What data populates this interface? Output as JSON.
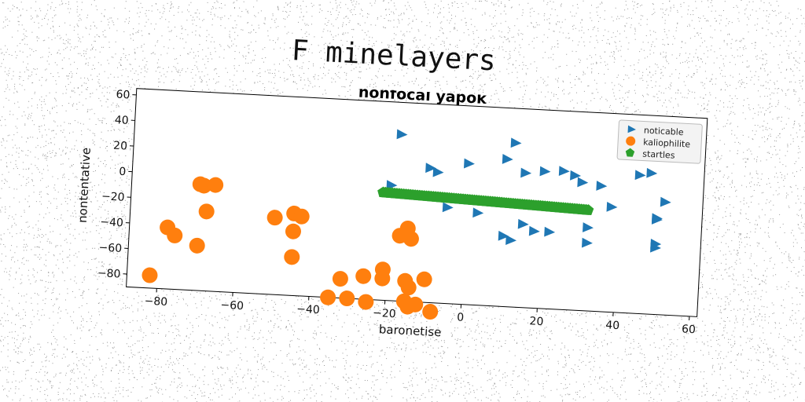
{
  "figure": {
    "suptitle": "F minelayers"
  },
  "chart_data": {
    "type": "scatter",
    "title": "nonfocal yapok",
    "xlabel": "baronetise",
    "ylabel": "nontentative",
    "xlim": [
      -88,
      62
    ],
    "ylim": [
      -90,
      65
    ],
    "xticks": [
      -80,
      -60,
      -40,
      -20,
      0,
      20,
      40,
      60
    ],
    "yticks": [
      60,
      40,
      20,
      0,
      -20,
      -40,
      -60,
      -80
    ],
    "tick_labels_x": [
      "−80",
      "−60",
      "−40",
      "−20",
      "0",
      "20",
      "40",
      "60"
    ],
    "tick_labels_y": [
      "60",
      "40",
      "20",
      "0",
      "−20",
      "−40",
      "−60",
      "−80"
    ],
    "grid": false,
    "legend": "top-right",
    "series": [
      {
        "name": "noticable",
        "marker": "triangle-right",
        "color": "#1f77b4",
        "points": [
          [
            -18,
            40
          ],
          [
            -20,
            0
          ],
          [
            -10,
            15
          ],
          [
            -8,
            12
          ],
          [
            0,
            20
          ],
          [
            -5,
            -15
          ],
          [
            3,
            -18
          ],
          [
            10,
            25
          ],
          [
            12,
            38
          ],
          [
            15,
            15
          ],
          [
            20,
            17
          ],
          [
            25,
            18
          ],
          [
            28,
            15
          ],
          [
            30,
            10
          ],
          [
            35,
            8
          ],
          [
            38,
            -8
          ],
          [
            45,
            18
          ],
          [
            50,
            -15
          ],
          [
            50,
            -16
          ],
          [
            52,
            -2
          ],
          [
            48,
            20
          ],
          [
            15,
            -25
          ],
          [
            18,
            -30
          ],
          [
            10,
            -35
          ],
          [
            12,
            -38
          ],
          [
            22,
            -30
          ],
          [
            32,
            -25
          ],
          [
            32,
            -37
          ],
          [
            50,
            -35
          ],
          [
            50,
            -38
          ]
        ]
      },
      {
        "name": "kaliophilite",
        "marker": "circle",
        "color": "#ff7f0e",
        "points": [
          [
            -82,
            -80
          ],
          [
            -78,
            -42
          ],
          [
            -76,
            -48
          ],
          [
            -70,
            -7
          ],
          [
            -69,
            -8
          ],
          [
            -66,
            -7
          ],
          [
            -68,
            -28
          ],
          [
            -70,
            -55
          ],
          [
            -50,
            -30
          ],
          [
            -45,
            -26
          ],
          [
            -43,
            -28
          ],
          [
            -45,
            -40
          ],
          [
            -45,
            -60
          ],
          [
            -32,
            -75
          ],
          [
            -35,
            -90
          ],
          [
            -30,
            -90
          ],
          [
            -26,
            -72
          ],
          [
            -25,
            -92
          ],
          [
            -21,
            -66
          ],
          [
            -21,
            -73
          ],
          [
            -17,
            -39
          ],
          [
            -15,
            -33
          ],
          [
            -14,
            -41
          ],
          [
            -15,
            -74
          ],
          [
            -14,
            -79
          ],
          [
            -15,
            -90
          ],
          [
            -14,
            -94
          ],
          [
            -12,
            -92
          ],
          [
            -10,
            -72
          ],
          [
            -8,
            -97
          ]
        ]
      },
      {
        "name": "startles",
        "marker": "pentagon",
        "color": "#2ca02c",
        "x_start": -22,
        "x_end": 32,
        "x_step": 0.6,
        "y_base": -6,
        "y_slope": -0.1
      }
    ]
  }
}
